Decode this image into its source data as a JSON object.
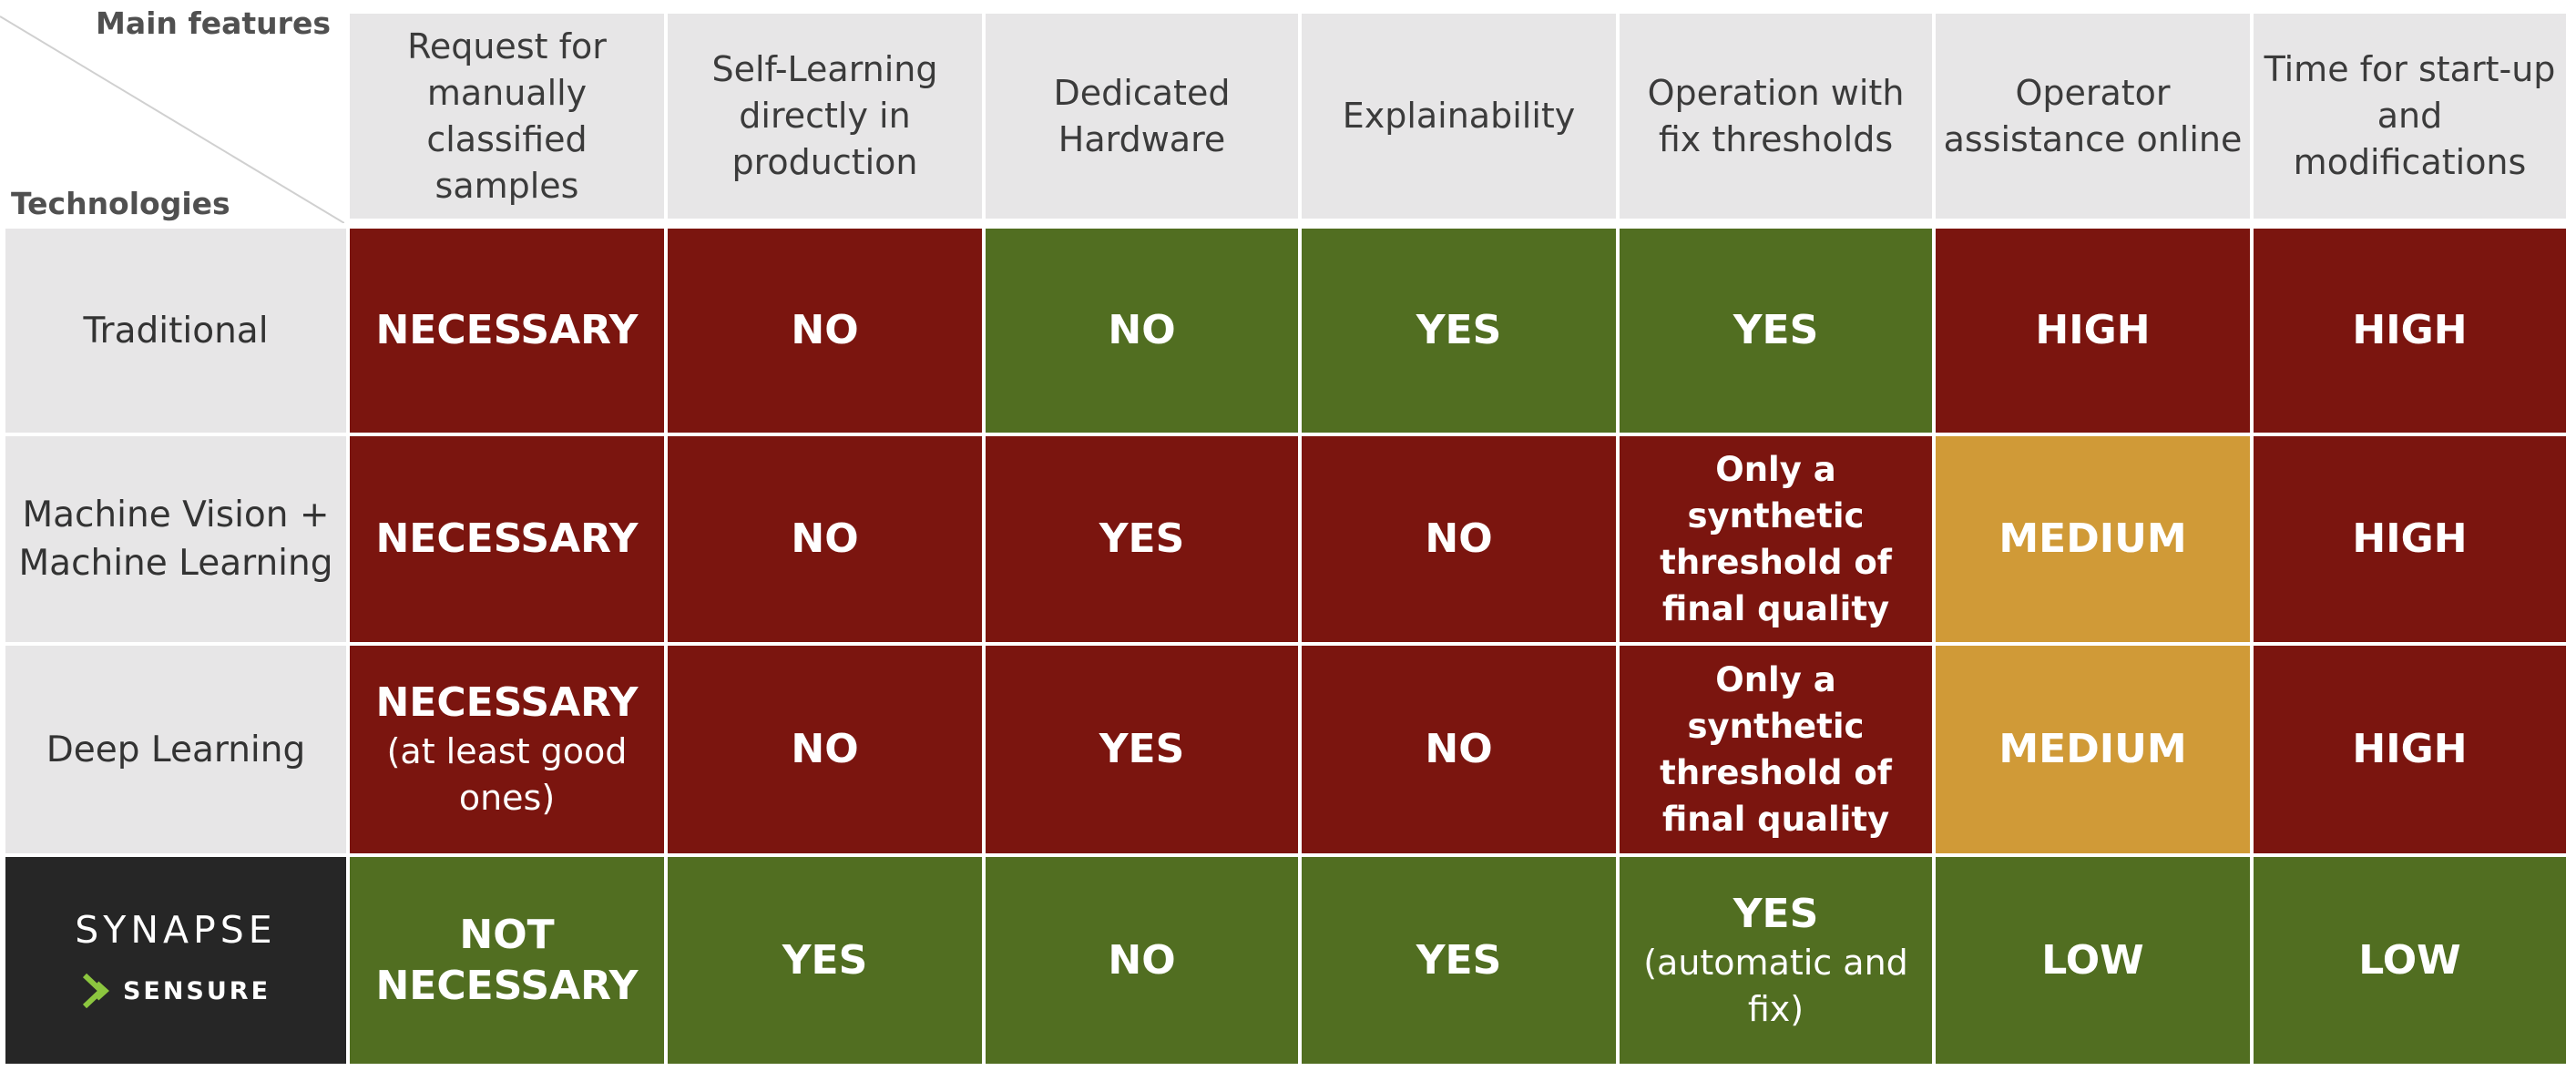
{
  "corner": {
    "top_label": "Main features",
    "bottom_label": "Technologies"
  },
  "columns": [
    "Request for manually classified samples",
    "Self-Learning directly in production",
    "Dedicated Hardware",
    "Explainability",
    "Operation with fix thresholds",
    "Operator assistance online",
    "Time for start-up and modifications"
  ],
  "rows": [
    {
      "technology": "Traditional",
      "cells": [
        {
          "value": "NECESSARY",
          "level": "bad"
        },
        {
          "value": "NO",
          "level": "bad"
        },
        {
          "value": "NO",
          "level": "good"
        },
        {
          "value": "YES",
          "level": "good"
        },
        {
          "value": "YES",
          "level": "good"
        },
        {
          "value": "HIGH",
          "level": "bad"
        },
        {
          "value": "HIGH",
          "level": "bad"
        }
      ]
    },
    {
      "technology": "Machine Vision + Machine Learning",
      "cells": [
        {
          "value": "NECESSARY",
          "level": "bad"
        },
        {
          "value": "NO",
          "level": "bad"
        },
        {
          "value": "YES",
          "level": "bad"
        },
        {
          "value": "NO",
          "level": "bad"
        },
        {
          "value": "Only a synthetic threshold of final quality",
          "level": "bad"
        },
        {
          "value": "MEDIUM",
          "level": "medium"
        },
        {
          "value": "HIGH",
          "level": "bad"
        }
      ]
    },
    {
      "technology": "Deep Learning",
      "cells": [
        {
          "value": "NECESSARY",
          "note": "(at least good ones)",
          "level": "bad"
        },
        {
          "value": "NO",
          "level": "bad"
        },
        {
          "value": "YES",
          "level": "bad"
        },
        {
          "value": "NO",
          "level": "bad"
        },
        {
          "value": "Only a synthetic threshold of final quality",
          "level": "bad"
        },
        {
          "value": "MEDIUM",
          "level": "medium"
        },
        {
          "value": "HIGH",
          "level": "bad"
        }
      ]
    },
    {
      "technology_logo": {
        "name": "SYNAPSE",
        "sub": "SENSURE"
      },
      "cells": [
        {
          "value": "NOT NECESSARY",
          "level": "good"
        },
        {
          "value": "YES",
          "level": "good"
        },
        {
          "value": "NO",
          "level": "good"
        },
        {
          "value": "YES",
          "level": "good"
        },
        {
          "value": "YES",
          "note": "(automatic and fix)",
          "level": "good"
        },
        {
          "value": "LOW",
          "level": "good"
        },
        {
          "value": "LOW",
          "level": "good"
        }
      ]
    }
  ],
  "colors": {
    "bad": "#7b150f",
    "good": "#516e21",
    "medium": "#d09a37",
    "header_bg": "#e7e6e7",
    "logo_bg": "#262626",
    "logo_accent": "#8cc63f"
  }
}
